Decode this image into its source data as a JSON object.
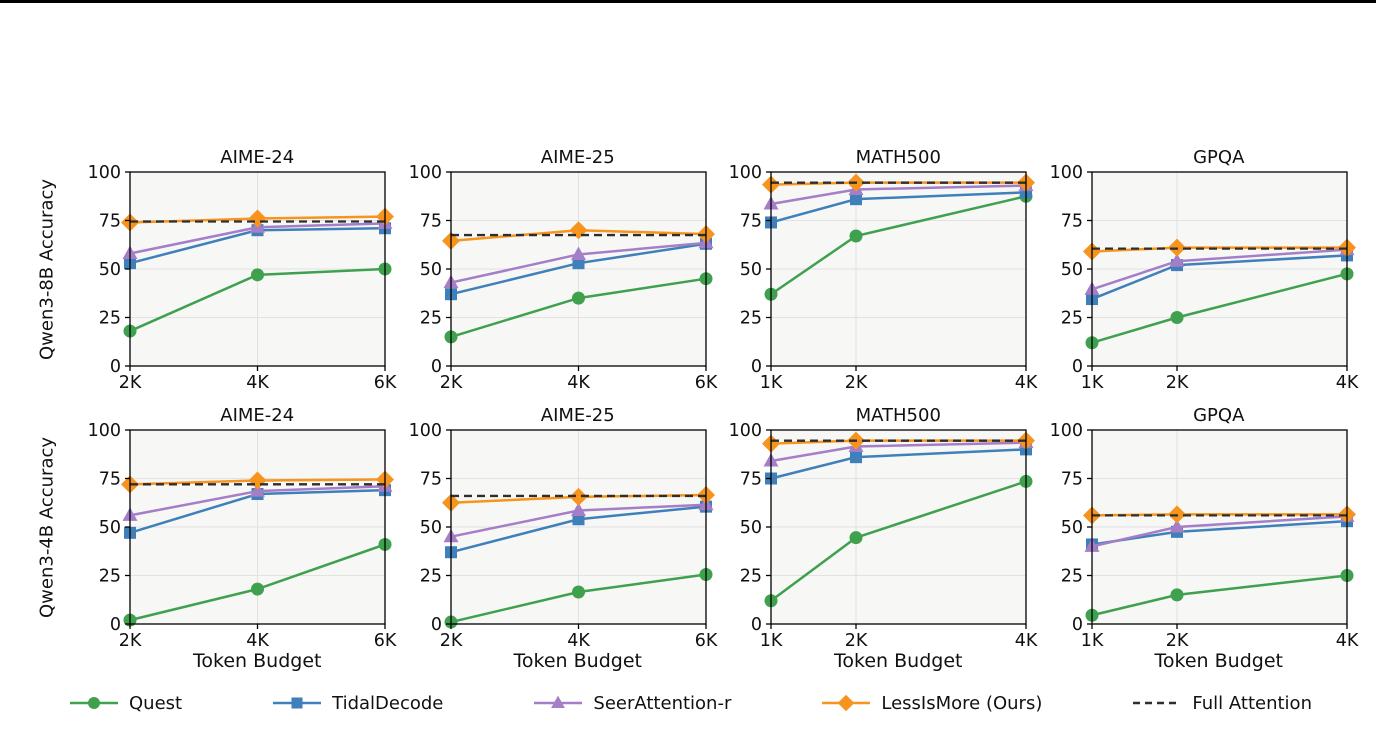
{
  "figure": {
    "description": "Accuracy vs token budget comparison of sparse attention methods on Qwen3-8B and Qwen3-4B"
  },
  "chart_data": {
    "type": "line",
    "xlabel": "Token Budget",
    "ylim": [
      0,
      100
    ],
    "yticks": [
      0,
      25,
      50,
      75,
      100
    ],
    "grid": true,
    "plot_bg": "#f7f7f6",
    "grid_color": "#e2e2e2",
    "legend": {
      "position": "bottom",
      "entries": [
        {
          "label": "Quest",
          "color": "#3fa04e",
          "marker": "circle"
        },
        {
          "label": "TidalDecode",
          "color": "#3f80ba",
          "marker": "square"
        },
        {
          "label": "SeerAttention-r",
          "color": "#a57ec8",
          "marker": "triangle"
        },
        {
          "label": "LessIsMore (Ours)",
          "color": "#f7941e",
          "marker": "diamond"
        },
        {
          "label": "Full Attention",
          "color": "#2e2e2e",
          "marker": "dashed-line"
        }
      ]
    },
    "rows": [
      {
        "ylabel": "Qwen3-8B Accuracy",
        "show_xlabel": false,
        "subplots": [
          {
            "title": "AIME-24",
            "x": [
              2,
              4,
              6
            ],
            "x_ticklabels": [
              "2K",
              "4K",
              "6K"
            ],
            "series": [
              {
                "name": "Quest",
                "values": [
                  18,
                  47,
                  50
                ]
              },
              {
                "name": "TidalDecode",
                "values": [
                  53,
                  70,
                  71
                ]
              },
              {
                "name": "SeerAttention-r",
                "values": [
                  58,
                  71.5,
                  73.5
                ]
              },
              {
                "name": "LessIsMore (Ours)",
                "values": [
                  74,
                  76,
                  77
                ]
              }
            ],
            "full_attention": 74.5
          },
          {
            "title": "AIME-25",
            "x": [
              2,
              4,
              6
            ],
            "x_ticklabels": [
              "2K",
              "4K",
              "6K"
            ],
            "series": [
              {
                "name": "Quest",
                "values": [
                  15,
                  35,
                  45
                ]
              },
              {
                "name": "TidalDecode",
                "values": [
                  37,
                  53,
                  63
                ]
              },
              {
                "name": "SeerAttention-r",
                "values": [
                  43,
                  57.5,
                  63.5
                ]
              },
              {
                "name": "LessIsMore (Ours)",
                "values": [
                  64.5,
                  70,
                  68
                ]
              }
            ],
            "full_attention": 67.5
          },
          {
            "title": "MATH500",
            "x": [
              1,
              2,
              4
            ],
            "x_ticklabels": [
              "1K",
              "2K",
              "4K"
            ],
            "series": [
              {
                "name": "Quest",
                "values": [
                  37,
                  67,
                  87.5
                ]
              },
              {
                "name": "TidalDecode",
                "values": [
                  74,
                  86,
                  89.5
                ]
              },
              {
                "name": "SeerAttention-r",
                "values": [
                  83.5,
                  91,
                  93
                ]
              },
              {
                "name": "LessIsMore (Ours)",
                "values": [
                  93.5,
                  94.5,
                  94.5
                ]
              }
            ],
            "full_attention": 94.5
          },
          {
            "title": "GPQA",
            "x": [
              1,
              2,
              4
            ],
            "x_ticklabels": [
              "1K",
              "2K",
              "4K"
            ],
            "series": [
              {
                "name": "Quest",
                "values": [
                  12,
                  25,
                  47.5
                ]
              },
              {
                "name": "TidalDecode",
                "values": [
                  34.5,
                  52,
                  57
                ]
              },
              {
                "name": "SeerAttention-r",
                "values": [
                  39.5,
                  54,
                  60
                ]
              },
              {
                "name": "LessIsMore (Ours)",
                "values": [
                  59,
                  61,
                  61
                ]
              }
            ],
            "full_attention": 60.5
          }
        ]
      },
      {
        "ylabel": "Qwen3-4B Accuracy",
        "show_xlabel": true,
        "subplots": [
          {
            "title": "AIME-24",
            "x": [
              2,
              4,
              6
            ],
            "x_ticklabels": [
              "2K",
              "4K",
              "6K"
            ],
            "series": [
              {
                "name": "Quest",
                "values": [
                  2,
                  18,
                  41
                ]
              },
              {
                "name": "TidalDecode",
                "values": [
                  47,
                  67,
                  69
                ]
              },
              {
                "name": "SeerAttention-r",
                "values": [
                  56,
                  68.5,
                  71
                ]
              },
              {
                "name": "LessIsMore (Ours)",
                "values": [
                  72,
                  74,
                  74.5
                ]
              }
            ],
            "full_attention": 72
          },
          {
            "title": "AIME-25",
            "x": [
              2,
              4,
              6
            ],
            "x_ticklabels": [
              "2K",
              "4K",
              "6K"
            ],
            "series": [
              {
                "name": "Quest",
                "values": [
                  1,
                  16.5,
                  25.5
                ]
              },
              {
                "name": "TidalDecode",
                "values": [
                  37,
                  54,
                  60.5
                ]
              },
              {
                "name": "SeerAttention-r",
                "values": [
                  45,
                  58.5,
                  61.5
                ]
              },
              {
                "name": "LessIsMore (Ours)",
                "values": [
                  62.5,
                  65.5,
                  66.5
                ]
              }
            ],
            "full_attention": 66
          },
          {
            "title": "MATH500",
            "x": [
              1,
              2,
              4
            ],
            "x_ticklabels": [
              "1K",
              "2K",
              "4K"
            ],
            "series": [
              {
                "name": "Quest",
                "values": [
                  12,
                  44.5,
                  73.5
                ]
              },
              {
                "name": "TidalDecode",
                "values": [
                  75,
                  86,
                  90
                ]
              },
              {
                "name": "SeerAttention-r",
                "values": [
                  84,
                  91.5,
                  93.5
                ]
              },
              {
                "name": "LessIsMore (Ours)",
                "values": [
                  93,
                  94.5,
                  94.5
                ]
              }
            ],
            "full_attention": 94.5
          },
          {
            "title": "GPQA",
            "x": [
              1,
              2,
              4
            ],
            "x_ticklabels": [
              "1K",
              "2K",
              "4K"
            ],
            "series": [
              {
                "name": "Quest",
                "values": [
                  4.5,
                  15,
                  25
                ]
              },
              {
                "name": "TidalDecode",
                "values": [
                  41,
                  47.5,
                  53
                ]
              },
              {
                "name": "SeerAttention-r",
                "values": [
                  40,
                  50,
                  55.5
                ]
              },
              {
                "name": "LessIsMore (Ours)",
                "values": [
                  56,
                  56.5,
                  56.5
                ]
              }
            ],
            "full_attention": 56
          }
        ]
      }
    ]
  }
}
